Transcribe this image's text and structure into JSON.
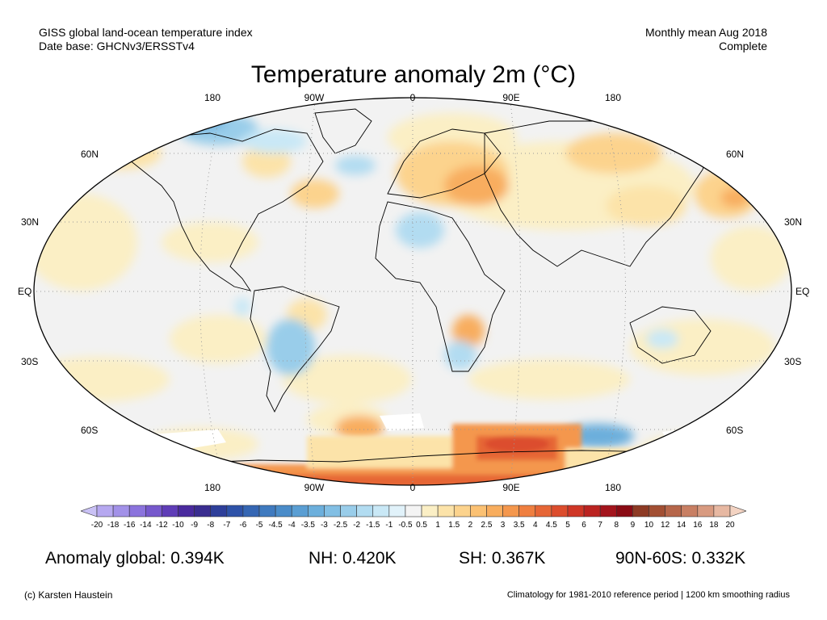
{
  "header": {
    "left_line1": "GISS global land-ocean temperature index",
    "left_line2": "Date base: GHCNv3/ERSSTv4",
    "right_line1": "Monthly mean Aug 2018",
    "right_line2": "Complete"
  },
  "title": "Temperature anomaly 2m (°C)",
  "map": {
    "projection": "Robinson",
    "lon_labels": [
      "180",
      "90W",
      "0",
      "90E",
      "180"
    ],
    "lat_labels": [
      "60N",
      "30N",
      "EQ",
      "30S",
      "60S"
    ],
    "background": "#f2f2f2",
    "land_outline_color": "#000000",
    "graticule": "dotted"
  },
  "colorbar": {
    "labels": [
      "-20",
      "-18",
      "-16",
      "-14",
      "-12",
      "-10",
      "-9",
      "-8",
      "-7",
      "-6",
      "-5",
      "-4.5",
      "-4",
      "-3.5",
      "-3",
      "-2.5",
      "-2",
      "-1.5",
      "-1",
      "-0.5",
      "0.5",
      "1",
      "1.5",
      "2",
      "2.5",
      "3",
      "3.5",
      "4",
      "4.5",
      "5",
      "6",
      "7",
      "8",
      "9",
      "10",
      "12",
      "14",
      "16",
      "18",
      "20"
    ],
    "colors": [
      "#c9c1f5",
      "#b6a8f0",
      "#a291e8",
      "#8b73dd",
      "#7658cc",
      "#5f3db7",
      "#4a2a9e",
      "#3a2d90",
      "#2e3f9a",
      "#2e52a8",
      "#3566b3",
      "#3f7abf",
      "#4a8cc9",
      "#5a9ed3",
      "#6cafdc",
      "#82bfe4",
      "#99cdea",
      "#b2dcf1",
      "#c9e8f6",
      "#e1f2fa",
      "#f4f4f4",
      "#fbefc5",
      "#fce3a9",
      "#fcd38d",
      "#fbc173",
      "#f8ad5e",
      "#f4974d",
      "#ef7f40",
      "#e66636",
      "#dc4d2d",
      "#cf3626",
      "#bb2321",
      "#a3141c",
      "#8a0b14",
      "#8d3a24",
      "#a24f33",
      "#b6664a",
      "#c87f63",
      "#d89a80",
      "#e7b8a2",
      "#f3d3c2"
    ]
  },
  "stats": {
    "global": "Anomaly global: 0.394K",
    "nh": "NH: 0.420K",
    "sh": "SH: 0.367K",
    "polar": "90N-60S: 0.332K"
  },
  "footer": {
    "credit": "(c) Karsten Haustein",
    "note": "Climatology for 1981-2010 reference period | 1200 km smoothing radius"
  }
}
